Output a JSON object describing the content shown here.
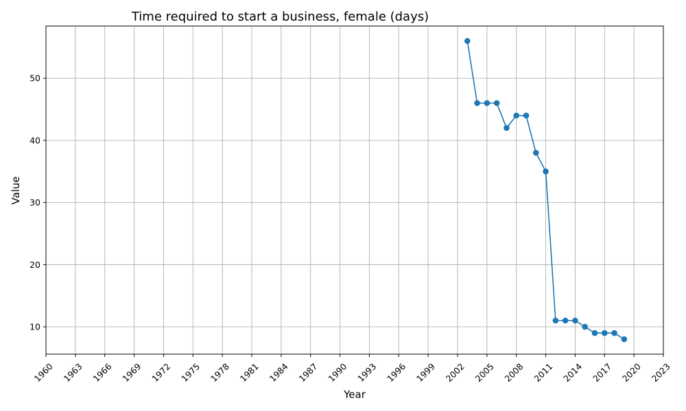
{
  "chart_data": {
    "type": "line",
    "title": "Time required to start a business, female (days)",
    "xlabel": "Year",
    "ylabel": "Value",
    "xlim": [
      1960,
      2023
    ],
    "ylim": [
      5.6,
      58.4
    ],
    "grid": true,
    "x_ticks": [
      1960,
      1963,
      1966,
      1969,
      1972,
      1975,
      1978,
      1981,
      1984,
      1987,
      1990,
      1993,
      1996,
      1999,
      2002,
      2005,
      2008,
      2011,
      2014,
      2017,
      2020,
      2023
    ],
    "y_ticks": [
      10,
      20,
      30,
      40,
      50
    ],
    "x_tick_rotation_deg": 45,
    "line_color": "#1f77b4",
    "marker": "circle",
    "x": [
      2003,
      2004,
      2005,
      2006,
      2007,
      2008,
      2009,
      2010,
      2011,
      2012,
      2013,
      2014,
      2015,
      2016,
      2017,
      2018,
      2019
    ],
    "y": [
      56,
      46,
      46,
      46,
      42,
      44,
      44,
      38,
      35,
      11,
      11,
      11,
      10,
      9,
      9,
      9,
      8
    ]
  }
}
